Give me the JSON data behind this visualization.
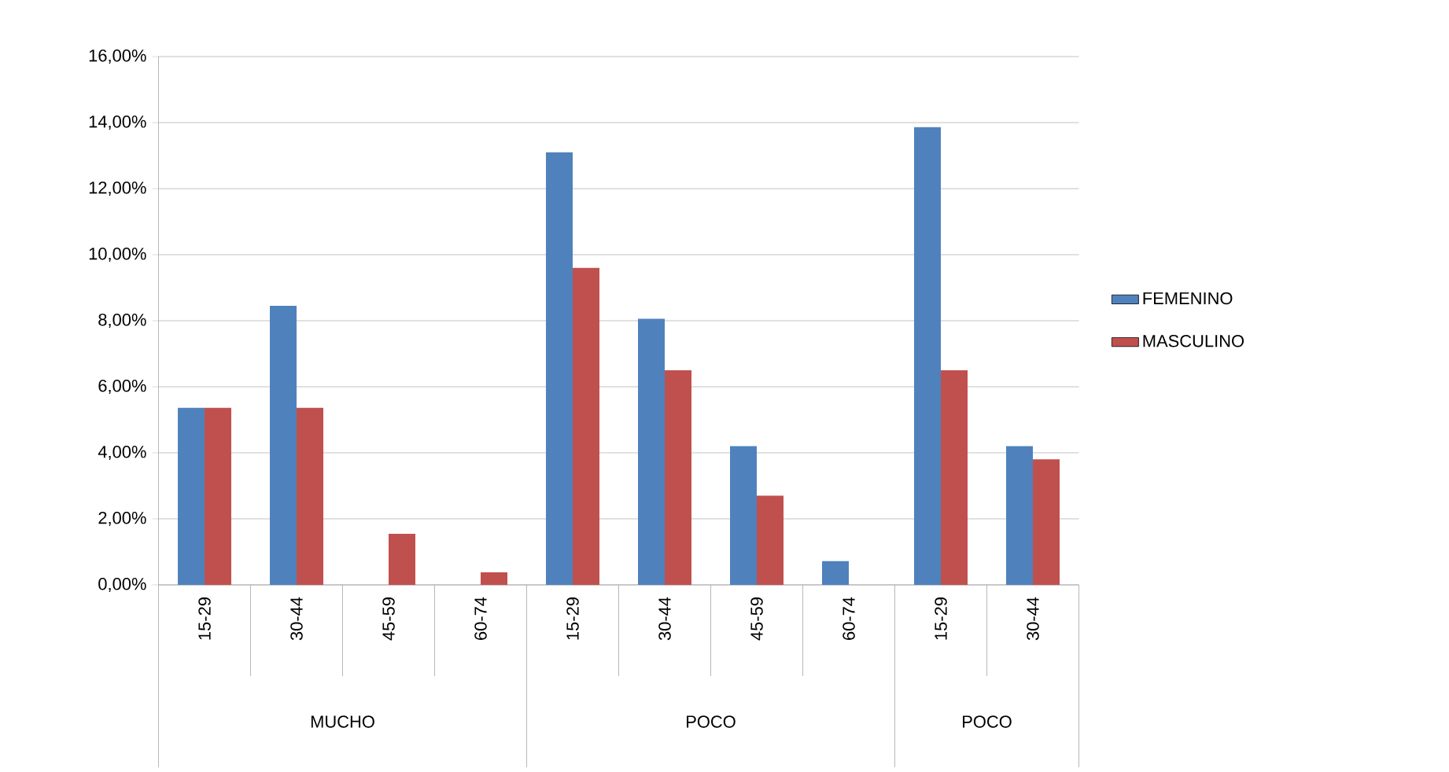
{
  "chart_data": {
    "type": "bar",
    "categories": [
      "15-29",
      "30-44",
      "45-59",
      "60-74",
      "15-29",
      "30-44",
      "45-59",
      "60-74",
      "15-29",
      "30-44"
    ],
    "series": [
      {
        "name": "FEMENINO",
        "color": "#4f81bd",
        "values": [
          5.36,
          8.45,
          null,
          null,
          13.1,
          8.06,
          4.2,
          0.72,
          13.86,
          4.2
        ]
      },
      {
        "name": "MASCULINO",
        "color": "#c0504d",
        "values": [
          5.36,
          5.36,
          1.55,
          0.38,
          9.6,
          6.5,
          2.7,
          null,
          6.5,
          3.8
        ]
      }
    ],
    "annotations": [
      "MUCHO",
      "POCO",
      "POCO"
    ],
    "ylim": [
      0,
      16
    ],
    "yticks": [
      {
        "value": 0,
        "label": "0,00%"
      },
      {
        "value": 2,
        "label": "2,00%"
      },
      {
        "value": 4,
        "label": "4,00%"
      },
      {
        "value": 6,
        "label": "6,00%"
      },
      {
        "value": 8,
        "label": "8,00%"
      },
      {
        "value": 10,
        "label": "10,00%"
      },
      {
        "value": 12,
        "label": "12,00%"
      },
      {
        "value": 14,
        "label": "14,00%"
      },
      {
        "value": 16,
        "label": "16,00%"
      }
    ],
    "grid": "y",
    "legend": "right"
  }
}
